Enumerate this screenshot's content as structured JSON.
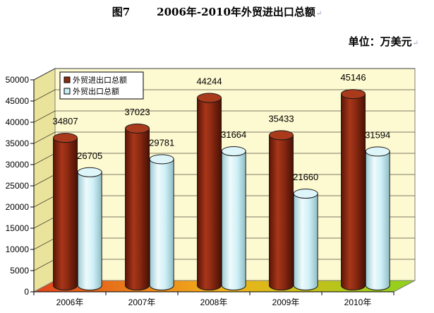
{
  "header": {
    "figure_label": "图7",
    "title": "2006年-2010年外贸进出口总额",
    "unit": "单位：万美元",
    "para_mark": "↵"
  },
  "chart_data": {
    "type": "bar",
    "title": "2006年-2010年外贸进出口总额",
    "categories": [
      "2006年",
      "2007年",
      "2008年",
      "2009年",
      "2010年"
    ],
    "series": [
      {
        "name": "外贸进出口总额",
        "values": [
          34807,
          37023,
          44244,
          35433,
          45146
        ],
        "color": "#8b2a12"
      },
      {
        "name": "外贸出口总额",
        "values": [
          26705,
          29781,
          31664,
          21660,
          31594
        ],
        "color": "#c6eef5"
      }
    ],
    "ylim": [
      0,
      50000
    ],
    "yticks": [
      0,
      5000,
      10000,
      15000,
      20000,
      25000,
      30000,
      35000,
      40000,
      45000,
      50000
    ],
    "grid": true,
    "legend_position": "top-left",
    "wall_color": "#fdf9d0",
    "floor_colors": [
      "#e0441a",
      "#f2b21a",
      "#8ed21c"
    ]
  }
}
